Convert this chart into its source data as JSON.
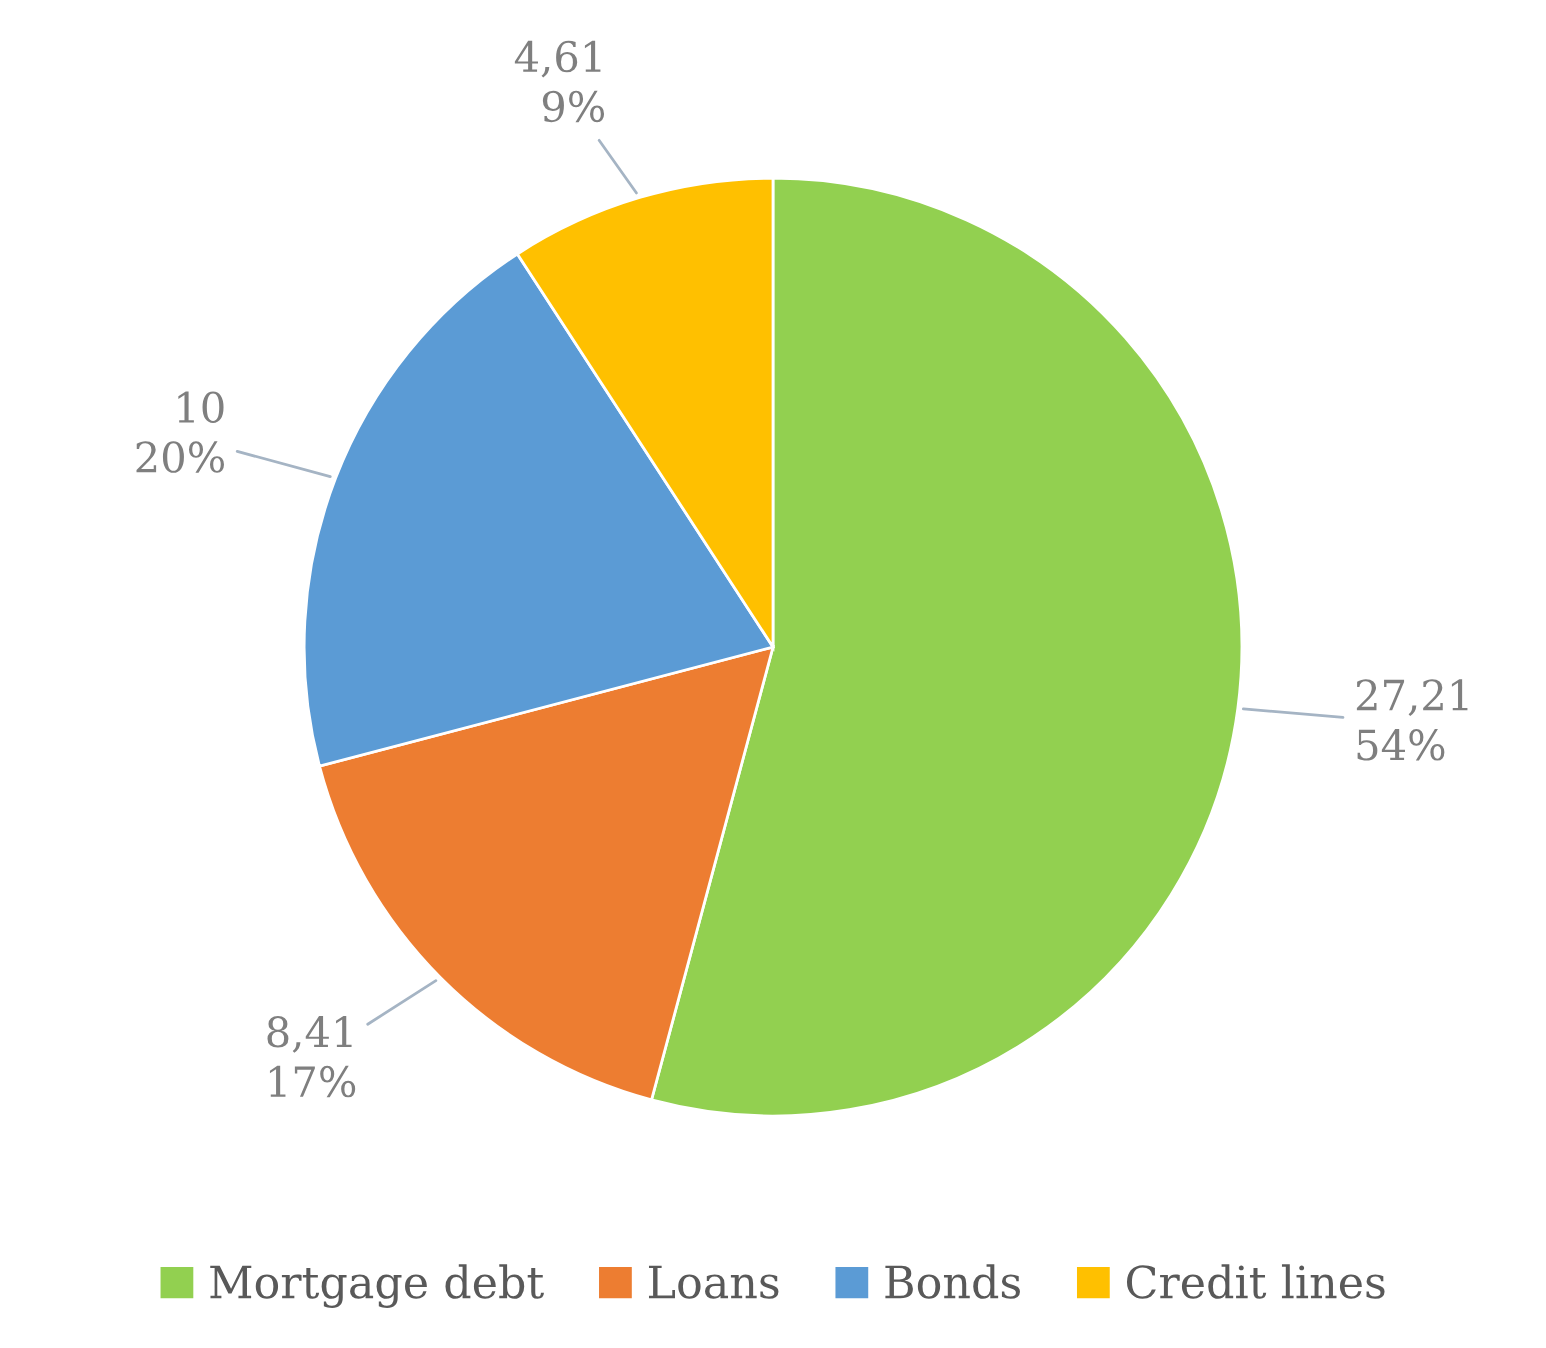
{
  "chart_data": {
    "type": "pie",
    "categories": [
      "Mortgage debt",
      "Loans",
      "Bonds",
      "Credit lines"
    ],
    "values": [
      27.21,
      8.41,
      10,
      4.61
    ],
    "colors": [
      "#92d050",
      "#ed7d31",
      "#5b9bd5",
      "#ffc000"
    ],
    "value_labels": [
      "27,21\n54%",
      "8,41\n17%",
      "10\n20%",
      "4,61\n9%"
    ],
    "legend": "bottom"
  }
}
